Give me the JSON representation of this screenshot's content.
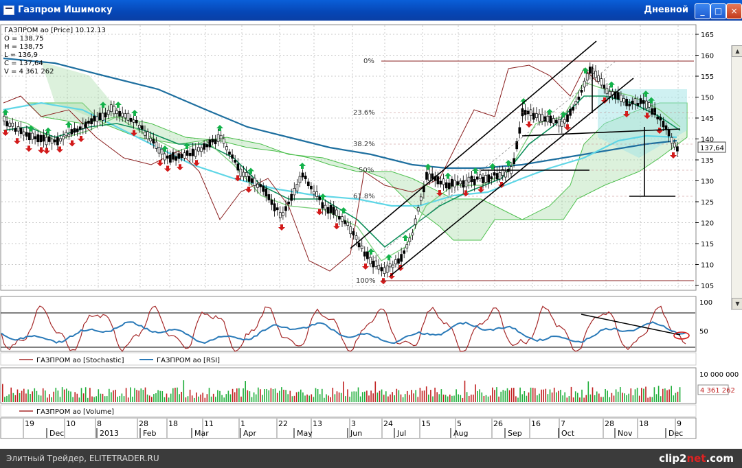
{
  "window": {
    "title": "Газпром Ишимоку",
    "mode": "Дневной",
    "minimize": "_",
    "maximize": "□",
    "close": "×"
  },
  "info": {
    "line1": "ГАЗПРОМ ао [Price] 10.12.13",
    "open": "O = 138,75",
    "high": "H = 138,75",
    "low": "L = 136,9",
    "close": "C = 137,64",
    "volume": "V = 4 361 262"
  },
  "price_axis": {
    "ticks": [
      "165",
      "160",
      "155",
      "150",
      "145",
      "140",
      "135",
      "130",
      "125",
      "120",
      "115",
      "110",
      "105"
    ],
    "current": "137,64"
  },
  "fib_levels": [
    "0%",
    "23.6%",
    "38.2%",
    "50%",
    "61.8%",
    "100%"
  ],
  "indicators": {
    "scale": [
      "100",
      "50"
    ],
    "legend_stoch": "ГАЗПРОМ ао [Stochastic]",
    "legend_rsi": "ГАЗПРОМ ао [RSI]"
  },
  "volume_panel": {
    "scale": "10 000 000",
    "current": "4 361 262",
    "legend": "ГАЗПРОМ ао [Volume]"
  },
  "date_axis": {
    "days": [
      "19",
      "10",
      "8",
      "28",
      "18",
      "11",
      "1",
      "22",
      "13",
      "3",
      "24",
      "15",
      "5",
      "26",
      "16",
      "7",
      "28",
      "18",
      "9"
    ],
    "months": [
      "Dec",
      "2013",
      "Feb",
      "Mar",
      "Apr",
      "May",
      "Jun",
      "Jul",
      "Aug",
      "Sep",
      "Oct",
      "Nov",
      "Dec"
    ]
  },
  "status": {
    "left": "Элитный Трейдер, ELITETRADER.RU",
    "brand_a": "clip2",
    "brand_b": "net",
    "brand_c": ".com"
  },
  "colors": {
    "up_arrow": "#13b24a",
    "down_arrow": "#d21a1a",
    "stochastic": "#a52828",
    "rsi": "#2a7ab8",
    "kijun": "#0d8f5a",
    "tenkan": "#7fd07f",
    "cloud": "#8bd08b",
    "ma_slow": "#1e6f9f",
    "ma_fast": "#5fd6e6"
  }
}
